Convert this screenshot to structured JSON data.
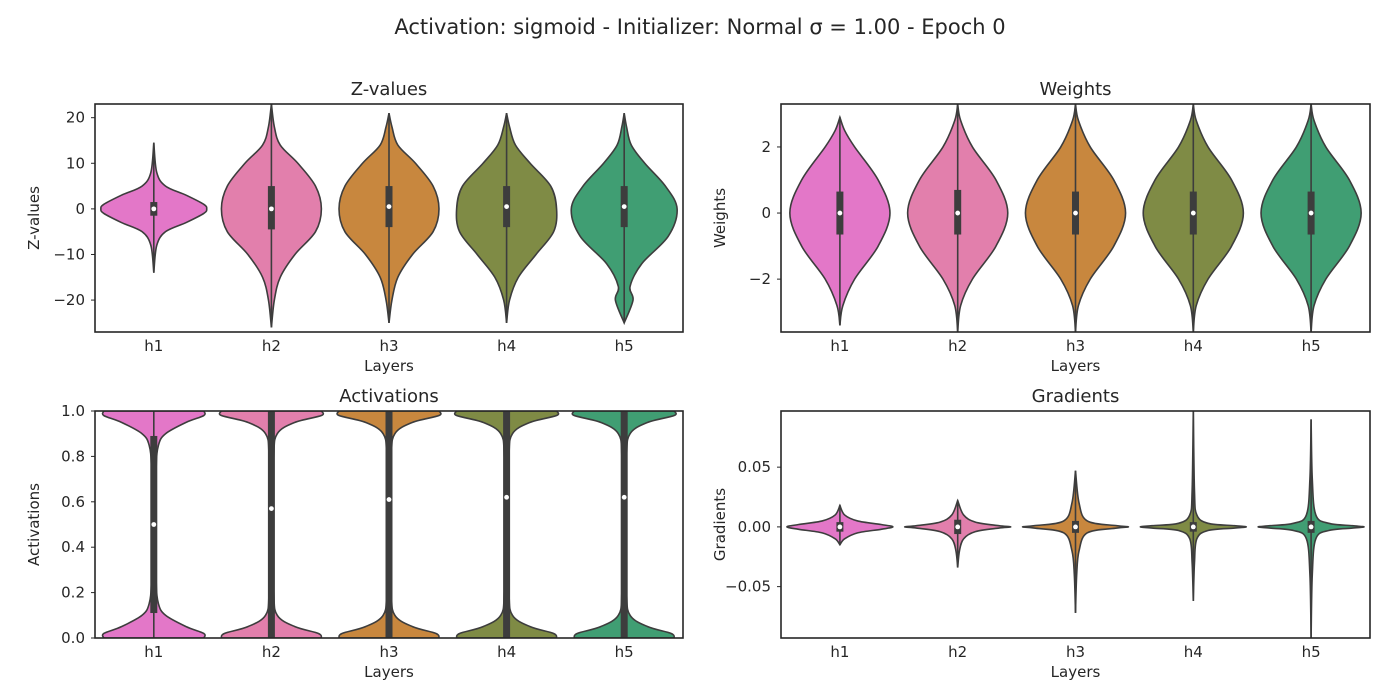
{
  "figure_title": "Activation: sigmoid - Initializer: Normal σ = 1.00 - Epoch 0",
  "chart_data": [
    {
      "type": "violin",
      "title": "Z-values",
      "xlabel": "Layers",
      "ylabel": "Z-values",
      "categories": [
        "h1",
        "h2",
        "h3",
        "h4",
        "h5"
      ],
      "ylim": [
        -27,
        23
      ],
      "yticks": [
        20,
        10,
        0,
        -10,
        -20
      ],
      "ytick_labels": [
        "20",
        "10",
        "0",
        "−10",
        "−20"
      ],
      "colors": [
        "#e377c8",
        "#e27fac",
        "#c8873e",
        "#7f8b45",
        "#409e73"
      ],
      "violins": [
        {
          "min": -14,
          "max": 14.5,
          "q1": -1.5,
          "median": 0,
          "q3": 1.5,
          "shape": [
            [
              -14,
              0.0
            ],
            [
              -8,
              0.05
            ],
            [
              -5,
              0.2
            ],
            [
              -3,
              0.55
            ],
            [
              -1,
              0.85
            ],
            [
              0,
              0.9
            ],
            [
              1,
              0.85
            ],
            [
              3,
              0.55
            ],
            [
              5,
              0.2
            ],
            [
              8,
              0.05
            ],
            [
              14.5,
              0.0
            ]
          ]
        },
        {
          "min": -26,
          "max": 23,
          "q1": -4.5,
          "median": 0,
          "q3": 5,
          "shape": [
            [
              -26,
              0.0
            ],
            [
              -20,
              0.05
            ],
            [
              -15,
              0.15
            ],
            [
              -10,
              0.4
            ],
            [
              -5,
              0.75
            ],
            [
              0,
              0.85
            ],
            [
              5,
              0.75
            ],
            [
              10,
              0.45
            ],
            [
              14,
              0.15
            ],
            [
              18,
              0.05
            ],
            [
              23,
              0.0
            ]
          ]
        },
        {
          "min": -25,
          "max": 21,
          "q1": -4,
          "median": 0.5,
          "q3": 5,
          "shape": [
            [
              -25,
              0.0
            ],
            [
              -20,
              0.05
            ],
            [
              -15,
              0.15
            ],
            [
              -10,
              0.4
            ],
            [
              -5,
              0.75
            ],
            [
              0,
              0.85
            ],
            [
              5,
              0.75
            ],
            [
              10,
              0.45
            ],
            [
              14,
              0.15
            ],
            [
              18,
              0.05
            ],
            [
              21,
              0.0
            ]
          ]
        },
        {
          "min": -25,
          "max": 21,
          "q1": -4,
          "median": 0.5,
          "q3": 5,
          "shape": [
            [
              -25,
              0.0
            ],
            [
              -20,
              0.05
            ],
            [
              -15,
              0.2
            ],
            [
              -10,
              0.5
            ],
            [
              -5,
              0.8
            ],
            [
              0,
              0.85
            ],
            [
              5,
              0.75
            ],
            [
              10,
              0.4
            ],
            [
              14,
              0.15
            ],
            [
              18,
              0.05
            ],
            [
              21,
              0.0
            ]
          ]
        },
        {
          "min": -25,
          "max": 21,
          "q1": -4,
          "median": 0.5,
          "q3": 5,
          "shape": [
            [
              -25,
              0.0
            ],
            [
              -20,
              0.15
            ],
            [
              -17,
              0.1
            ],
            [
              -12,
              0.3
            ],
            [
              -6,
              0.75
            ],
            [
              0,
              0.9
            ],
            [
              5,
              0.7
            ],
            [
              10,
              0.35
            ],
            [
              14,
              0.12
            ],
            [
              18,
              0.04
            ],
            [
              21,
              0.0
            ]
          ]
        }
      ]
    },
    {
      "type": "violin",
      "title": "Weights",
      "xlabel": "Layers",
      "ylabel": "Weights",
      "categories": [
        "h1",
        "h2",
        "h3",
        "h4",
        "h5"
      ],
      "ylim": [
        -3.6,
        3.3
      ],
      "yticks": [
        2,
        0,
        -2
      ],
      "ytick_labels": [
        "2",
        "0",
        "−2"
      ],
      "colors": [
        "#e377c8",
        "#e27fac",
        "#c8873e",
        "#7f8b45",
        "#409e73"
      ],
      "violins": [
        {
          "min": -3.4,
          "max": 2.9,
          "q1": -0.65,
          "median": 0,
          "q3": 0.65,
          "shape": [
            [
              -3.4,
              0.0
            ],
            [
              -2.8,
              0.05
            ],
            [
              -2,
              0.25
            ],
            [
              -1,
              0.65
            ],
            [
              0,
              0.85
            ],
            [
              1,
              0.65
            ],
            [
              2,
              0.25
            ],
            [
              2.5,
              0.08
            ],
            [
              2.9,
              0.0
            ]
          ]
        },
        {
          "min": -3.6,
          "max": 3.3,
          "q1": -0.65,
          "median": 0,
          "q3": 0.7,
          "shape": [
            [
              -3.6,
              0.0
            ],
            [
              -2.8,
              0.05
            ],
            [
              -2,
              0.25
            ],
            [
              -1,
              0.65
            ],
            [
              0,
              0.85
            ],
            [
              1,
              0.65
            ],
            [
              2,
              0.25
            ],
            [
              2.8,
              0.05
            ],
            [
              3.3,
              0.0
            ]
          ]
        },
        {
          "min": -3.6,
          "max": 3.3,
          "q1": -0.65,
          "median": 0,
          "q3": 0.65,
          "shape": [
            [
              -3.6,
              0.0
            ],
            [
              -2.8,
              0.05
            ],
            [
              -2,
              0.25
            ],
            [
              -1,
              0.65
            ],
            [
              0,
              0.85
            ],
            [
              1,
              0.65
            ],
            [
              2,
              0.25
            ],
            [
              2.8,
              0.05
            ],
            [
              3.3,
              0.0
            ]
          ]
        },
        {
          "min": -3.6,
          "max": 3.3,
          "q1": -0.65,
          "median": 0,
          "q3": 0.65,
          "shape": [
            [
              -3.6,
              0.0
            ],
            [
              -2.8,
              0.05
            ],
            [
              -2,
              0.25
            ],
            [
              -1,
              0.65
            ],
            [
              0,
              0.85
            ],
            [
              1,
              0.65
            ],
            [
              2,
              0.25
            ],
            [
              2.8,
              0.05
            ],
            [
              3.3,
              0.0
            ]
          ]
        },
        {
          "min": -3.6,
          "max": 3.3,
          "q1": -0.65,
          "median": 0,
          "q3": 0.65,
          "shape": [
            [
              -3.6,
              0.0
            ],
            [
              -2.8,
              0.05
            ],
            [
              -2,
              0.25
            ],
            [
              -1,
              0.65
            ],
            [
              0,
              0.85
            ],
            [
              1,
              0.65
            ],
            [
              2,
              0.25
            ],
            [
              2.8,
              0.05
            ],
            [
              3.3,
              0.0
            ]
          ]
        }
      ]
    },
    {
      "type": "violin",
      "title": "Activations",
      "xlabel": "Layers",
      "ylabel": "Activations",
      "categories": [
        "h1",
        "h2",
        "h3",
        "h4",
        "h5"
      ],
      "ylim": [
        0,
        1
      ],
      "yticks": [
        0,
        0.2,
        0.4,
        0.6,
        0.8,
        1.0
      ],
      "ytick_labels": [
        "0.0",
        "0.2",
        "0.4",
        "0.6",
        "0.8",
        "1.0"
      ],
      "colors": [
        "#e377c8",
        "#e27fac",
        "#c8873e",
        "#7f8b45",
        "#409e73"
      ],
      "violins": [
        {
          "min": 0,
          "max": 1,
          "q1": 0.11,
          "median": 0.5,
          "q3": 0.89,
          "shape": [
            [
              0,
              0.85
            ],
            [
              0.02,
              0.85
            ],
            [
              0.05,
              0.55
            ],
            [
              0.1,
              0.2
            ],
            [
              0.15,
              0.08
            ],
            [
              0.25,
              0.04
            ],
            [
              0.5,
              0.03
            ],
            [
              0.75,
              0.04
            ],
            [
              0.85,
              0.08
            ],
            [
              0.9,
              0.2
            ],
            [
              0.95,
              0.55
            ],
            [
              0.98,
              0.85
            ],
            [
              1,
              0.85
            ]
          ]
        },
        {
          "min": 0,
          "max": 1,
          "q1": 0.0,
          "median": 0.57,
          "q3": 1.0,
          "shape": [
            [
              0,
              0.85
            ],
            [
              0.02,
              0.8
            ],
            [
              0.05,
              0.4
            ],
            [
              0.1,
              0.1
            ],
            [
              0.2,
              0.04
            ],
            [
              0.5,
              0.025
            ],
            [
              0.8,
              0.04
            ],
            [
              0.9,
              0.1
            ],
            [
              0.95,
              0.4
            ],
            [
              0.98,
              0.85
            ],
            [
              1,
              0.85
            ]
          ]
        },
        {
          "min": 0,
          "max": 1,
          "q1": 0.0,
          "median": 0.61,
          "q3": 1.0,
          "shape": [
            [
              0,
              0.85
            ],
            [
              0.02,
              0.8
            ],
            [
              0.05,
              0.4
            ],
            [
              0.1,
              0.1
            ],
            [
              0.2,
              0.04
            ],
            [
              0.5,
              0.025
            ],
            [
              0.8,
              0.04
            ],
            [
              0.9,
              0.1
            ],
            [
              0.95,
              0.4
            ],
            [
              0.98,
              0.85
            ],
            [
              1,
              0.85
            ]
          ]
        },
        {
          "min": 0,
          "max": 1,
          "q1": 0.0,
          "median": 0.62,
          "q3": 1.0,
          "shape": [
            [
              0,
              0.85
            ],
            [
              0.02,
              0.8
            ],
            [
              0.05,
              0.4
            ],
            [
              0.1,
              0.1
            ],
            [
              0.2,
              0.04
            ],
            [
              0.5,
              0.025
            ],
            [
              0.8,
              0.04
            ],
            [
              0.9,
              0.1
            ],
            [
              0.95,
              0.4
            ],
            [
              0.98,
              0.85
            ],
            [
              1,
              0.85
            ]
          ]
        },
        {
          "min": 0,
          "max": 1,
          "q1": 0.0,
          "median": 0.62,
          "q3": 1.0,
          "shape": [
            [
              0,
              0.85
            ],
            [
              0.02,
              0.8
            ],
            [
              0.05,
              0.4
            ],
            [
              0.1,
              0.1
            ],
            [
              0.2,
              0.04
            ],
            [
              0.5,
              0.025
            ],
            [
              0.8,
              0.04
            ],
            [
              0.9,
              0.1
            ],
            [
              0.95,
              0.4
            ],
            [
              0.98,
              0.85
            ],
            [
              1,
              0.85
            ]
          ]
        }
      ]
    },
    {
      "type": "violin",
      "title": "Gradients",
      "xlabel": "Layers",
      "ylabel": "Gradients",
      "categories": [
        "h1",
        "h2",
        "h3",
        "h4",
        "h5"
      ],
      "ylim": [
        -0.093,
        0.097
      ],
      "yticks": [
        0.05,
        0,
        -0.05
      ],
      "ytick_labels": [
        "0.05",
        "0.00",
        "−0.05"
      ],
      "colors": [
        "#e377c8",
        "#e27fac",
        "#c8873e",
        "#7f8b45",
        "#409e73"
      ],
      "violins": [
        {
          "min": -0.015,
          "max": 0.018,
          "q1": -0.004,
          "median": 0,
          "q3": 0.004,
          "shape": [
            [
              -0.015,
              0.0
            ],
            [
              -0.01,
              0.08
            ],
            [
              -0.005,
              0.3
            ],
            [
              -0.002,
              0.7
            ],
            [
              0,
              0.9
            ],
            [
              0.002,
              0.7
            ],
            [
              0.005,
              0.3
            ],
            [
              0.01,
              0.08
            ],
            [
              0.018,
              0.0
            ]
          ]
        },
        {
          "min": -0.034,
          "max": 0.022,
          "q1": -0.006,
          "median": 0,
          "q3": 0.006,
          "shape": [
            [
              -0.034,
              0.0
            ],
            [
              -0.02,
              0.03
            ],
            [
              -0.01,
              0.1
            ],
            [
              -0.004,
              0.3
            ],
            [
              -0.001,
              0.7
            ],
            [
              0,
              0.9
            ],
            [
              0.001,
              0.7
            ],
            [
              0.004,
              0.3
            ],
            [
              0.01,
              0.1
            ],
            [
              0.022,
              0.0
            ]
          ]
        },
        {
          "min": -0.072,
          "max": 0.047,
          "q1": -0.005,
          "median": 0,
          "q3": 0.005,
          "shape": [
            [
              -0.072,
              0.0
            ],
            [
              -0.04,
              0.02
            ],
            [
              -0.02,
              0.06
            ],
            [
              -0.005,
              0.2
            ],
            [
              -0.001,
              0.7
            ],
            [
              0,
              0.9
            ],
            [
              0.001,
              0.7
            ],
            [
              0.005,
              0.2
            ],
            [
              0.02,
              0.06
            ],
            [
              0.047,
              0.0
            ]
          ]
        },
        {
          "min": -0.062,
          "max": 0.097,
          "q1": -0.004,
          "median": 0,
          "q3": 0.004,
          "shape": [
            [
              -0.062,
              0.0
            ],
            [
              -0.03,
              0.02
            ],
            [
              -0.01,
              0.06
            ],
            [
              -0.003,
              0.25
            ],
            [
              -0.001,
              0.7
            ],
            [
              0,
              0.9
            ],
            [
              0.001,
              0.7
            ],
            [
              0.003,
              0.25
            ],
            [
              0.01,
              0.06
            ],
            [
              0.03,
              0.02
            ],
            [
              0.097,
              0.0
            ]
          ]
        },
        {
          "min": -0.093,
          "max": 0.09,
          "q1": -0.005,
          "median": 0,
          "q3": 0.005,
          "shape": [
            [
              -0.093,
              0.0
            ],
            [
              -0.04,
              0.02
            ],
            [
              -0.01,
              0.08
            ],
            [
              -0.003,
              0.3
            ],
            [
              -0.001,
              0.7
            ],
            [
              0,
              0.9
            ],
            [
              0.001,
              0.7
            ],
            [
              0.003,
              0.3
            ],
            [
              0.01,
              0.08
            ],
            [
              0.04,
              0.02
            ],
            [
              0.09,
              0.0
            ]
          ]
        }
      ]
    }
  ]
}
